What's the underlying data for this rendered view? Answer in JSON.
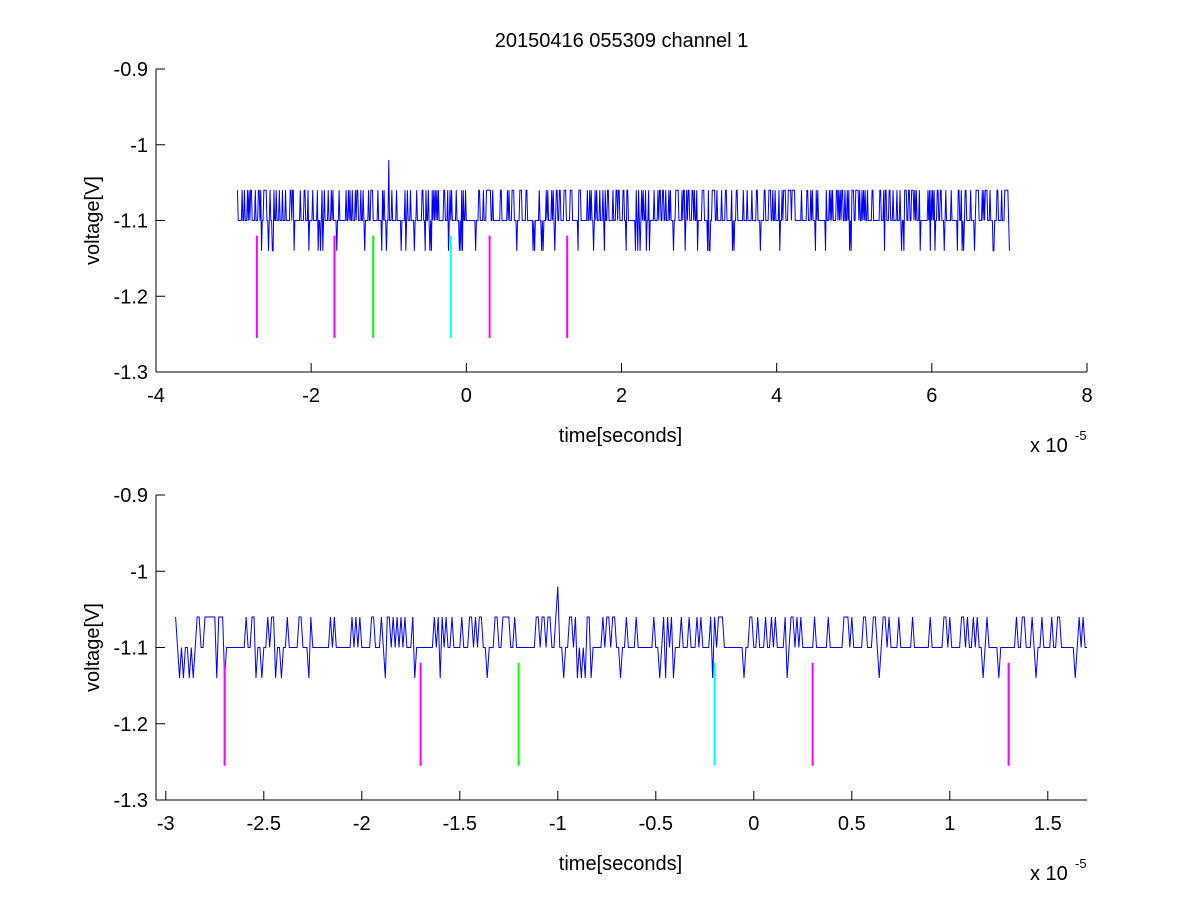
{
  "chart_data": [
    {
      "type": "line",
      "title": "20150416 055309 channel 1",
      "xlabel": "time[seconds]",
      "ylabel": "voltage[V]",
      "x_multiplier": "x 10",
      "x_exponent": "-5",
      "xlim": [
        -4,
        8
      ],
      "ylim": [
        -1.3,
        -0.9
      ],
      "xticks": [
        -4,
        -2,
        0,
        2,
        4,
        6,
        8
      ],
      "xtick_labels": [
        "-4",
        "-2",
        "0",
        "2",
        "4",
        "6",
        "8"
      ],
      "yticks": [
        -1.3,
        -1.2,
        -1.1,
        -1.0,
        -0.9
      ],
      "ytick_labels": [
        "-1.3",
        "-1.2",
        "-1.1",
        "-1",
        "-0.9"
      ],
      "grid": false,
      "series": [
        {
          "color": "#0000ff",
          "x_range": [
            -2.95,
            7.0
          ],
          "baseline": -1.1,
          "level_high": -1.06,
          "level_low": -1.14,
          "peak": {
            "x": -1.0,
            "y": -1.02
          }
        }
      ],
      "markers": [
        {
          "x": -2.7,
          "y1": -1.255,
          "y2": -1.12,
          "color": "#ff00ff"
        },
        {
          "x": -1.7,
          "y1": -1.255,
          "y2": -1.12,
          "color": "#ff00ff"
        },
        {
          "x": -1.2,
          "y1": -1.255,
          "y2": -1.12,
          "color": "#00ff00"
        },
        {
          "x": -0.2,
          "y1": -1.255,
          "y2": -1.12,
          "color": "#00ffff"
        },
        {
          "x": 0.3,
          "y1": -1.255,
          "y2": -1.12,
          "color": "#ff00ff"
        },
        {
          "x": 1.3,
          "y1": -1.255,
          "y2": -1.12,
          "color": "#ff00ff"
        }
      ]
    },
    {
      "type": "line",
      "title": "",
      "xlabel": "time[seconds]",
      "ylabel": "voltage[V]",
      "x_multiplier": "x 10",
      "x_exponent": "-5",
      "xlim": [
        -3.05,
        1.7
      ],
      "ylim": [
        -1.3,
        -0.9
      ],
      "xticks": [
        -3,
        -2.5,
        -2,
        -1.5,
        -1,
        -0.5,
        0,
        0.5,
        1,
        1.5
      ],
      "xtick_labels": [
        "-3",
        "-2.5",
        "-2",
        "-1.5",
        "-1",
        "-0.5",
        "0",
        "0.5",
        "1",
        "1.5"
      ],
      "yticks": [
        -1.3,
        -1.2,
        -1.1,
        -1.0,
        -0.9
      ],
      "ytick_labels": [
        "-1.3",
        "-1.2",
        "-1.1",
        "-1",
        "-0.9"
      ],
      "grid": false,
      "series": [
        {
          "color": "#0000ff",
          "x_range": [
            -2.95,
            1.7
          ],
          "baseline": -1.1,
          "level_high": -1.06,
          "level_low": -1.14,
          "peak": {
            "x": -1.0,
            "y": -1.02
          }
        }
      ],
      "markers": [
        {
          "x": -2.7,
          "y1": -1.255,
          "y2": -1.12,
          "color": "#ff00ff"
        },
        {
          "x": -1.7,
          "y1": -1.255,
          "y2": -1.12,
          "color": "#ff00ff"
        },
        {
          "x": -1.2,
          "y1": -1.255,
          "y2": -1.12,
          "color": "#00ff00"
        },
        {
          "x": -0.2,
          "y1": -1.255,
          "y2": -1.12,
          "color": "#00ffff"
        },
        {
          "x": 0.3,
          "y1": -1.255,
          "y2": -1.12,
          "color": "#ff00ff"
        },
        {
          "x": 1.3,
          "y1": -1.255,
          "y2": -1.12,
          "color": "#ff00ff"
        }
      ]
    }
  ]
}
